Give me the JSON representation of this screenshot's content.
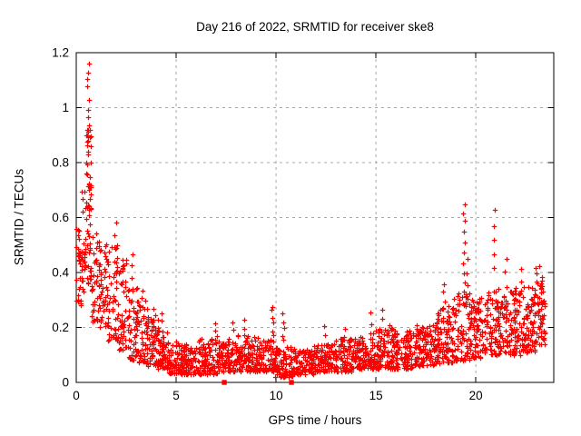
{
  "title": "Day 216 of 2022, SRMTID for receiver ske8",
  "colors": {
    "marker": "#ff0000",
    "grid": "#a8a8a8",
    "axis": "#000000",
    "background": "#ffffff"
  },
  "chart_data": {
    "type": "scatter",
    "title": "Day 216 of 2022, SRMTID for receiver ske8",
    "xlabel": "GPS time / hours",
    "ylabel": "SRMTID / TECUs",
    "xlim": [
      0,
      23.9
    ],
    "ylim": [
      0,
      1.2
    ],
    "xticks": {
      "values": [
        0,
        5,
        10,
        15,
        20
      ],
      "labels": [
        "0",
        "5",
        "10",
        "15",
        "20"
      ]
    },
    "yticks": {
      "values": [
        0,
        0.2,
        0.4,
        0.6,
        0.8,
        1,
        1.2
      ],
      "labels": [
        "0",
        "0.2",
        "0.4",
        "0.6",
        "0.8",
        "1",
        "1.2"
      ]
    },
    "grid": true,
    "legend": "none",
    "marker": "plus",
    "marker_size_px": 5.5,
    "series": [
      {
        "name": "srmtid-scatter",
        "color": "#ff0000",
        "representation": "binned-envelope",
        "seed": 20220816,
        "bins_format": "[x_start_h, x_end_h, n_points, y_min_TECU, y_max_TECU, low_skew]",
        "bins": [
          [
            0.0,
            0.25,
            28,
            0.27,
            0.57,
            1.0
          ],
          [
            0.25,
            0.5,
            30,
            0.32,
            0.72,
            1.2
          ],
          [
            0.5,
            0.75,
            45,
            0.36,
            0.95,
            1.6
          ],
          [
            0.75,
            1.05,
            30,
            0.22,
            0.55,
            1.2
          ],
          [
            1.05,
            1.55,
            45,
            0.2,
            0.52,
            1.3
          ],
          [
            1.55,
            2.1,
            50,
            0.15,
            0.5,
            1.5
          ],
          [
            2.1,
            2.6,
            50,
            0.12,
            0.45,
            1.6
          ],
          [
            2.6,
            3.1,
            50,
            0.08,
            0.35,
            1.5
          ],
          [
            3.1,
            3.6,
            50,
            0.07,
            0.3,
            1.5
          ],
          [
            3.6,
            4.1,
            50,
            0.06,
            0.24,
            1.5
          ],
          [
            4.1,
            4.6,
            52,
            0.05,
            0.2,
            1.5
          ],
          [
            4.6,
            5.1,
            52,
            0.03,
            0.15,
            1.4
          ],
          [
            5.1,
            6.1,
            100,
            0.03,
            0.14,
            1.4
          ],
          [
            6.1,
            7.1,
            100,
            0.03,
            0.16,
            1.5
          ],
          [
            7.1,
            8.1,
            100,
            0.04,
            0.16,
            1.5
          ],
          [
            8.1,
            9.1,
            100,
            0.04,
            0.18,
            1.5
          ],
          [
            9.1,
            9.9,
            80,
            0.04,
            0.16,
            1.5
          ],
          [
            9.9,
            10.9,
            100,
            0.02,
            0.13,
            1.4
          ],
          [
            10.9,
            11.9,
            100,
            0.03,
            0.12,
            1.4
          ],
          [
            11.9,
            12.9,
            100,
            0.04,
            0.14,
            1.5
          ],
          [
            12.9,
            13.9,
            100,
            0.04,
            0.16,
            1.5
          ],
          [
            13.9,
            14.9,
            100,
            0.05,
            0.18,
            1.5
          ],
          [
            14.9,
            15.9,
            100,
            0.05,
            0.21,
            1.5
          ],
          [
            15.9,
            16.9,
            100,
            0.05,
            0.19,
            1.5
          ],
          [
            16.9,
            17.9,
            100,
            0.06,
            0.21,
            1.5
          ],
          [
            17.9,
            18.8,
            95,
            0.07,
            0.28,
            1.5
          ],
          [
            18.8,
            19.7,
            85,
            0.08,
            0.33,
            1.4
          ],
          [
            19.7,
            20.6,
            90,
            0.09,
            0.31,
            1.4
          ],
          [
            20.6,
            21.3,
            75,
            0.1,
            0.36,
            1.3
          ],
          [
            21.3,
            22.3,
            100,
            0.1,
            0.36,
            1.3
          ],
          [
            22.3,
            23.0,
            85,
            0.11,
            0.35,
            1.2
          ],
          [
            23.0,
            23.45,
            55,
            0.13,
            0.42,
            1.1
          ]
        ],
        "spike_columns_format": "[x_h, n_points, y_bottom_TECU, y_top_TECU]",
        "spike_columns": [
          [
            0.58,
            4,
            1.08,
            1.16
          ],
          [
            0.6,
            5,
            0.9,
            1.03
          ],
          [
            0.55,
            6,
            0.72,
            0.9
          ],
          [
            0.65,
            6,
            0.6,
            0.72
          ],
          [
            1.15,
            5,
            0.35,
            0.52
          ],
          [
            1.95,
            7,
            0.3,
            0.58
          ],
          [
            2.8,
            5,
            0.3,
            0.47
          ],
          [
            3.3,
            4,
            0.24,
            0.33
          ],
          [
            3.9,
            4,
            0.2,
            0.27
          ],
          [
            4.3,
            4,
            0.16,
            0.25
          ],
          [
            7.0,
            4,
            0.14,
            0.22
          ],
          [
            7.8,
            3,
            0.15,
            0.22
          ],
          [
            8.4,
            4,
            0.15,
            0.23
          ],
          [
            9.8,
            6,
            0.17,
            0.28
          ],
          [
            10.35,
            5,
            0.15,
            0.25
          ],
          [
            12.4,
            3,
            0.13,
            0.2
          ],
          [
            13.4,
            3,
            0.13,
            0.19
          ],
          [
            14.8,
            4,
            0.15,
            0.25
          ],
          [
            15.3,
            4,
            0.16,
            0.26
          ],
          [
            18.4,
            6,
            0.2,
            0.36
          ],
          [
            19.4,
            10,
            0.33,
            0.655
          ],
          [
            19.55,
            5,
            0.25,
            0.45
          ],
          [
            20.9,
            5,
            0.42,
            0.625
          ],
          [
            21.5,
            4,
            0.3,
            0.45
          ],
          [
            22.2,
            4,
            0.28,
            0.42
          ],
          [
            23.2,
            3,
            0.3,
            0.42
          ]
        ]
      },
      {
        "name": "axis-event-markers",
        "color": "#ff0000",
        "marker": "filled-square",
        "points": [
          [
            7.41,
            0
          ],
          [
            10.77,
            0
          ]
        ]
      }
    ]
  }
}
